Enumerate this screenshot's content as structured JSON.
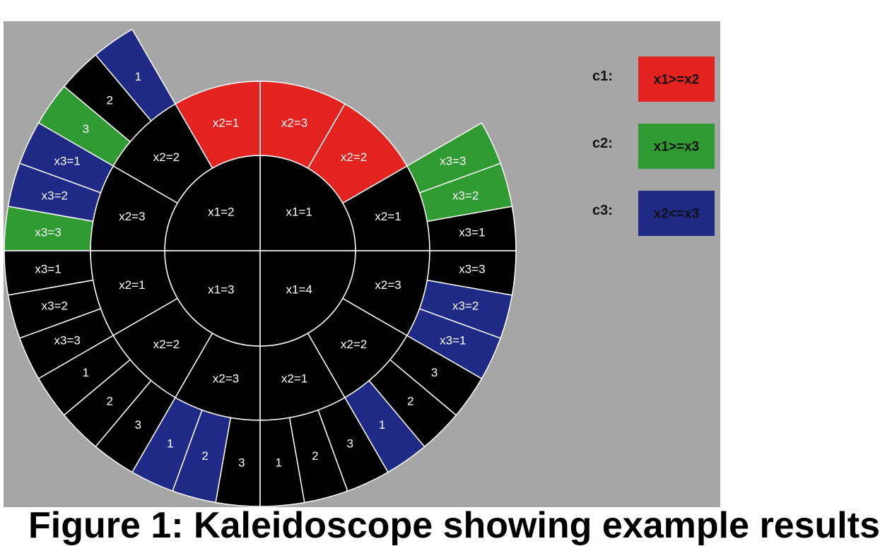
{
  "colors": {
    "background": "#a6a6a6",
    "segment": "#000000",
    "c1": "#e3231f",
    "c2": "#2f9b32",
    "c3": "#1e2a86",
    "divider": "#ffffff"
  },
  "caption": "Figure 1: Kaleidoscope showing example results",
  "legend": [
    {
      "key": "c1:",
      "text": "x1>=x2",
      "color": "c1"
    },
    {
      "key": "c2:",
      "text": "x1>=x3",
      "color": "c2"
    },
    {
      "key": "c3:",
      "text": "x2<=x3",
      "color": "c3"
    }
  ],
  "segments": [
    {
      "label": "x1=1",
      "ring": 0,
      "a0": 0,
      "a1": 90,
      "color": "segment"
    },
    {
      "label": "x1=2",
      "ring": 0,
      "a0": 90,
      "a1": 180,
      "color": "segment"
    },
    {
      "label": "x1=3",
      "ring": 0,
      "a0": 180,
      "a1": 270,
      "color": "segment"
    },
    {
      "label": "x1=4",
      "ring": 0,
      "a0": 270,
      "a1": 360,
      "color": "segment"
    },
    {
      "label": "x2=1",
      "ring": 1,
      "a0": 0,
      "a1": 30,
      "color": "segment"
    },
    {
      "label": "x2=2",
      "ring": 1,
      "a0": 30,
      "a1": 60,
      "color": "c1"
    },
    {
      "label": "x2=3",
      "ring": 1,
      "a0": 60,
      "a1": 90,
      "color": "c1"
    },
    {
      "label": "x2=1",
      "ring": 1,
      "a0": 90,
      "a1": 120,
      "color": "c1"
    },
    {
      "label": "x2=2",
      "ring": 1,
      "a0": 120,
      "a1": 150,
      "color": "segment"
    },
    {
      "label": "x2=3",
      "ring": 1,
      "a0": 150,
      "a1": 180,
      "color": "segment"
    },
    {
      "label": "x2=1",
      "ring": 1,
      "a0": 180,
      "a1": 210,
      "color": "segment"
    },
    {
      "label": "x2=2",
      "ring": 1,
      "a0": 210,
      "a1": 240,
      "color": "segment"
    },
    {
      "label": "x2=3",
      "ring": 1,
      "a0": 240,
      "a1": 270,
      "color": "segment"
    },
    {
      "label": "x2=1",
      "ring": 1,
      "a0": 270,
      "a1": 300,
      "color": "segment"
    },
    {
      "label": "x2=2",
      "ring": 1,
      "a0": 300,
      "a1": 330,
      "color": "segment"
    },
    {
      "label": "x2=3",
      "ring": 1,
      "a0": 330,
      "a1": 360,
      "color": "segment"
    },
    {
      "label": "x3=1",
      "ring": 2,
      "a0": 0,
      "a1": 10,
      "color": "segment"
    },
    {
      "label": "x3=2",
      "ring": 2,
      "a0": 10,
      "a1": 20,
      "color": "c2"
    },
    {
      "label": "x3=3",
      "ring": 2,
      "a0": 20,
      "a1": 30,
      "color": "c2"
    },
    {
      "label": "1",
      "ring": 2,
      "a0": 120,
      "a1": 130,
      "color": "c3"
    },
    {
      "label": "2",
      "ring": 2,
      "a0": 130,
      "a1": 140,
      "color": "segment"
    },
    {
      "label": "3",
      "ring": 2,
      "a0": 140,
      "a1": 150,
      "color": "c2"
    },
    {
      "label": "x3=1",
      "ring": 2,
      "a0": 150,
      "a1": 160,
      "color": "c3"
    },
    {
      "label": "x3=2",
      "ring": 2,
      "a0": 160,
      "a1": 170,
      "color": "c3"
    },
    {
      "label": "x3=3",
      "ring": 2,
      "a0": 170,
      "a1": 180,
      "color": "c2"
    },
    {
      "label": "x3=1",
      "ring": 2,
      "a0": 180,
      "a1": 190,
      "color": "segment"
    },
    {
      "label": "x3=2",
      "ring": 2,
      "a0": 190,
      "a1": 200,
      "color": "segment"
    },
    {
      "label": "x3=3",
      "ring": 2,
      "a0": 200,
      "a1": 210,
      "color": "segment"
    },
    {
      "label": "1",
      "ring": 2,
      "a0": 210,
      "a1": 220,
      "color": "segment"
    },
    {
      "label": "2",
      "ring": 2,
      "a0": 220,
      "a1": 230,
      "color": "segment"
    },
    {
      "label": "3",
      "ring": 2,
      "a0": 230,
      "a1": 240,
      "color": "segment"
    },
    {
      "label": "1",
      "ring": 2,
      "a0": 240,
      "a1": 250,
      "color": "c3"
    },
    {
      "label": "2",
      "ring": 2,
      "a0": 250,
      "a1": 260,
      "color": "c3"
    },
    {
      "label": "3",
      "ring": 2,
      "a0": 260,
      "a1": 270,
      "color": "segment"
    },
    {
      "label": "1",
      "ring": 2,
      "a0": 270,
      "a1": 280,
      "color": "segment"
    },
    {
      "label": "2",
      "ring": 2,
      "a0": 280,
      "a1": 290,
      "color": "segment"
    },
    {
      "label": "3",
      "ring": 2,
      "a0": 290,
      "a1": 300,
      "color": "segment"
    },
    {
      "label": "1",
      "ring": 2,
      "a0": 300,
      "a1": 310,
      "color": "c3"
    },
    {
      "label": "2",
      "ring": 2,
      "a0": 310,
      "a1": 320,
      "color": "segment"
    },
    {
      "label": "3",
      "ring": 2,
      "a0": 320,
      "a1": 330,
      "color": "segment"
    },
    {
      "label": "x3=1",
      "ring": 2,
      "a0": 330,
      "a1": 340,
      "color": "c3"
    },
    {
      "label": "x3=2",
      "ring": 2,
      "a0": 340,
      "a1": 350,
      "color": "c3"
    },
    {
      "label": "x3=3",
      "ring": 2,
      "a0": 350,
      "a1": 360,
      "color": "segment"
    }
  ]
}
